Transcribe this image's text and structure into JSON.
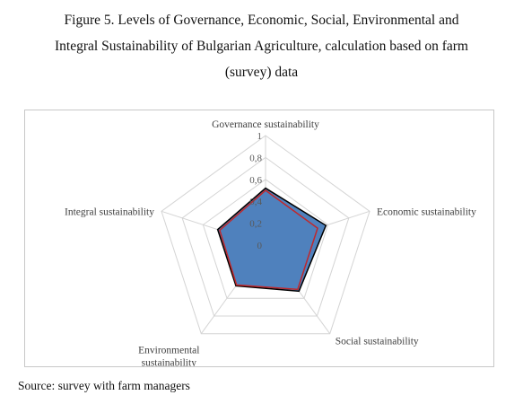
{
  "caption": {
    "line1": "Figure 5. Levels of Governance, Economic, Social, Environmental and",
    "line2": "Integral Sustainability of Bulgarian Agriculture, calculation based on farm",
    "line3": "(survey) data"
  },
  "source": "Source: survey with farm managers",
  "chart_data": {
    "type": "radar",
    "categories": [
      "Governance sustainability",
      "Economic sustainability",
      "Social sustainability",
      "Environmental sustainability",
      "Integral sustainability"
    ],
    "category_label_lines": [
      [
        "Governance sustainability"
      ],
      [
        "Economic sustainability"
      ],
      [
        "Social sustainability"
      ],
      [
        "Environmental",
        "sustainability"
      ],
      [
        "Integral sustainability"
      ]
    ],
    "rlim": [
      0,
      1
    ],
    "ticks": [
      "0",
      "0,2",
      "0,4",
      "0,6",
      "0,8",
      "1"
    ],
    "grid": true,
    "legend": "none",
    "series": [
      {
        "values": [
          0.52,
          0.58,
          0.52,
          0.46,
          0.46
        ],
        "color": "#000000",
        "fill": "#4f81bd"
      },
      {
        "values": [
          0.5,
          0.5,
          0.5,
          0.45,
          0.44
        ],
        "color": "#c0282c",
        "fill": "none"
      }
    ]
  }
}
